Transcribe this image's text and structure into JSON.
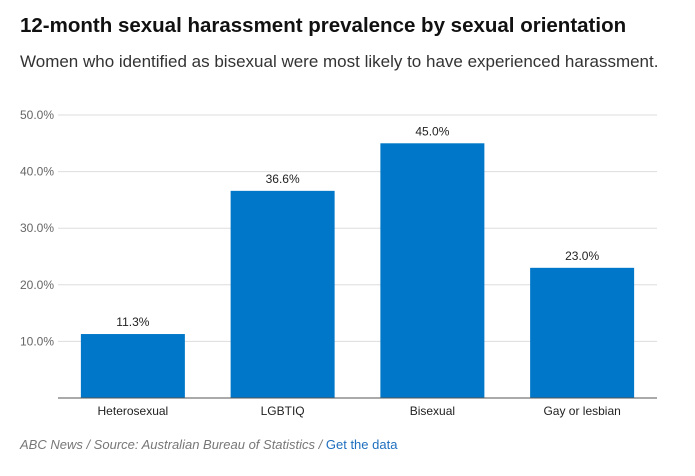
{
  "chart_data": {
    "type": "bar",
    "title": "12-month sexual harassment prevalence by sexual orientation",
    "subtitle": "Women who identified as bisexual were most likely to have experienced harassment.",
    "categories": [
      "Heterosexual",
      "LGBTIQ",
      "Bisexual",
      "Gay or lesbian"
    ],
    "values": [
      11.3,
      36.6,
      45.0,
      23.0
    ],
    "data_labels": [
      "11.3%",
      "36.6%",
      "45.0%",
      "23.0%"
    ],
    "y_ticks": [
      10,
      20,
      30,
      40,
      50
    ],
    "y_tick_labels": [
      "10.0%",
      "20.0%",
      "30.0%",
      "40.0%",
      "50.0%"
    ],
    "ylim": [
      0,
      50
    ],
    "grid": true,
    "bar_color": "#0077c8"
  },
  "footer": {
    "source": "ABC News / Source: Australian Bureau of Statistics / ",
    "link_label": "Get the data"
  }
}
